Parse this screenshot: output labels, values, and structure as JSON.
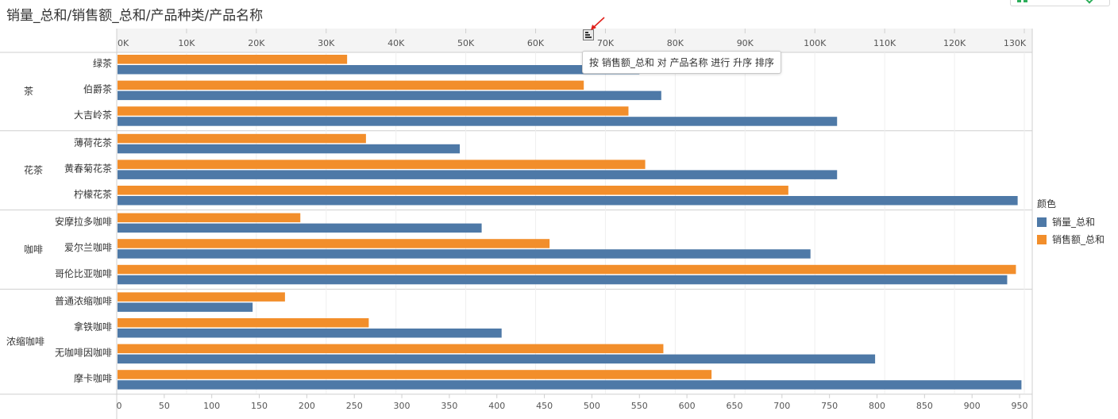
{
  "title": "销量_总和/销售额_总和/产品种类/产品名称",
  "tooltip": "按 销售额_总和 对 产品名称 进行 升序 排序",
  "legend": {
    "title": "颜色",
    "items": [
      {
        "label": "销量_总和",
        "color": "#4e79a7"
      },
      {
        "label": "销售额_总和",
        "color": "#f28e2b"
      }
    ]
  },
  "chart_data": {
    "type": "bar",
    "orientation": "horizontal",
    "groups": [
      {
        "name": "茶",
        "items": [
          "绿茶",
          "伯爵茶",
          "大吉岭茶"
        ]
      },
      {
        "name": "花茶",
        "items": [
          "薄荷花茶",
          "黄春菊花茶",
          "柠檬花茶"
        ]
      },
      {
        "name": "咖啡",
        "items": [
          "安摩拉多咖啡",
          "爱尔兰咖啡",
          "哥伦比亚咖啡"
        ]
      },
      {
        "name": "浓缩咖啡",
        "items": [
          "普通浓缩咖啡",
          "拿铁咖啡",
          "无咖啡因咖啡",
          "摩卡咖啡"
        ]
      }
    ],
    "categories": [
      "绿茶",
      "伯爵茶",
      "大吉岭茶",
      "薄荷花茶",
      "黄春菊花茶",
      "柠檬花茶",
      "安摩拉多咖啡",
      "爱尔兰咖啡",
      "哥伦比亚咖啡",
      "普通浓缩咖啡",
      "拿铁咖啡",
      "无咖啡因咖啡",
      "摩卡咖啡"
    ],
    "series": [
      {
        "name": "销售额_总和",
        "axis": "top",
        "color": "#f28e2b",
        "values": [
          33000,
          66900,
          73300,
          35700,
          75700,
          96200,
          26300,
          62000,
          128800,
          24100,
          36100,
          78300,
          85200
        ]
      },
      {
        "name": "销量_总和",
        "axis": "bottom",
        "color": "#4e79a7",
        "values": [
          550,
          573,
          758,
          361,
          758,
          948,
          384,
          730,
          937,
          143,
          405,
          798,
          952
        ]
      }
    ],
    "top_axis": {
      "range": [
        0,
        130000
      ],
      "ticks": [
        0,
        10000,
        20000,
        30000,
        40000,
        50000,
        60000,
        70000,
        80000,
        90000,
        100000,
        110000,
        120000,
        130000
      ],
      "tick_labels": [
        "0K",
        "10K",
        "20K",
        "30K",
        "40K",
        "50K",
        "60K",
        "70K",
        "80K",
        "90K",
        "100K",
        "110K",
        "120K",
        "130K"
      ]
    },
    "bottom_axis": {
      "range": [
        0,
        955
      ],
      "ticks": [
        0,
        50,
        100,
        150,
        200,
        250,
        300,
        350,
        400,
        450,
        500,
        550,
        600,
        650,
        700,
        750,
        800,
        850,
        900,
        950
      ],
      "tick_labels": [
        "0",
        "50",
        "100",
        "150",
        "200",
        "250",
        "300",
        "350",
        "400",
        "450",
        "500",
        "550",
        "600",
        "650",
        "700",
        "750",
        "800",
        "850",
        "900",
        "950"
      ]
    },
    "grid": true,
    "legend_position": "right"
  }
}
